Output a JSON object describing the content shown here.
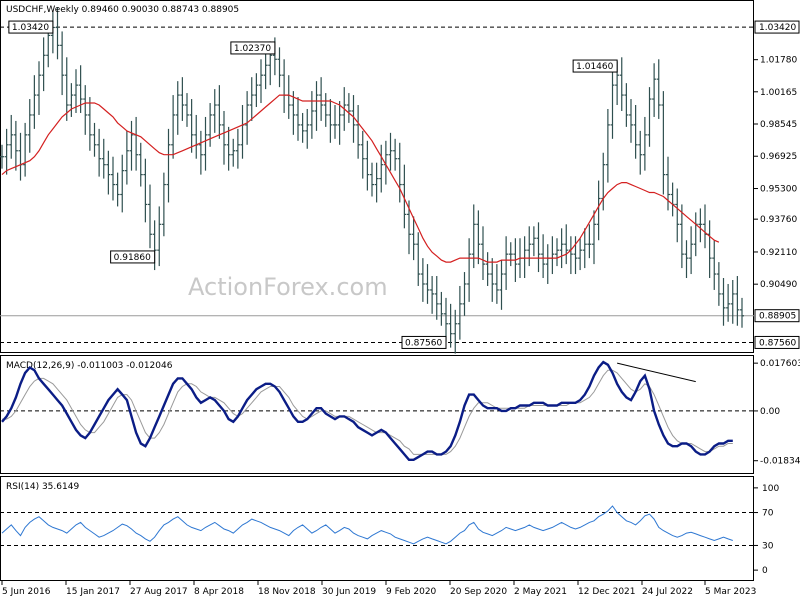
{
  "chart_data": {
    "type": "ohlc",
    "header": "USDCHF,Weekly  0.89460 0.90030 0.88743 0.88905",
    "watermark": "ActionForex.com",
    "price_axis": {
      "min": 0.8718,
      "max": 1.0458,
      "ticks": [
        "1.01780",
        "1.00165",
        "0.98545",
        "0.96925",
        "0.95300",
        "0.93760",
        "0.92110",
        "0.90490"
      ],
      "current_price": "0.88905",
      "highlight_levels": [
        "1.03420",
        "0.87560"
      ],
      "highlight_values": [
        1.0342,
        0.8756
      ]
    },
    "annotations": [
      {
        "label": "1.03420",
        "value": 1.0342,
        "date_index": 11
      },
      {
        "label": "1.02370",
        "value": 1.0237,
        "date_index": 59
      },
      {
        "label": "0.91860",
        "value": 0.9186,
        "date_index": 33
      },
      {
        "label": "1.01460",
        "value": 1.0146,
        "date_index": 133
      },
      {
        "label": "0.87560",
        "value": 0.8756,
        "date_index": 96
      }
    ],
    "x_tick_labels": [
      "5 Jun 2016",
      "15 Jan 2017",
      "27 Aug 2017",
      "8 Apr 2018",
      "18 Nov 2018",
      "30 Jun 2019",
      "9 Feb 2020",
      "20 Sep 2020",
      "2 May 2021",
      "12 Dec 2021",
      "24 Jul 2022",
      "5 Mar 2023"
    ],
    "series": [
      {
        "name": "USDCHF",
        "close": [
          0.969,
          0.975,
          0.98,
          0.972,
          0.965,
          0.98,
          0.99,
          1.0,
          1.01,
          1.02,
          1.03,
          1.034,
          1.025,
          1.01,
          0.995,
          1.0,
          1.005,
          0.998,
          0.99,
          0.98,
          0.975,
          0.968,
          0.965,
          0.96,
          0.955,
          0.95,
          0.962,
          0.972,
          0.98,
          0.97,
          0.96,
          0.945,
          0.93,
          0.922,
          0.935,
          0.955,
          0.975,
          0.99,
          1.0,
          0.995,
          0.99,
          0.98,
          0.975,
          0.97,
          0.98,
          0.99,
          0.995,
          0.985,
          0.975,
          0.97,
          0.972,
          0.975,
          0.985,
          0.995,
          1.0,
          1.005,
          1.01,
          1.015,
          1.02,
          1.018,
          1.01,
          1.0,
          0.995,
          0.99,
          0.985,
          0.982,
          0.985,
          0.992,
          1.0,
          0.995,
          0.99,
          0.985,
          0.985,
          0.99,
          0.995,
          0.992,
          0.985,
          0.975,
          0.968,
          0.96,
          0.955,
          0.958,
          0.965,
          0.97,
          0.972,
          0.968,
          0.955,
          0.94,
          0.93,
          0.925,
          0.91,
          0.905,
          0.902,
          0.9,
          0.895,
          0.89,
          0.885,
          0.88,
          0.885,
          0.895,
          0.905,
          0.92,
          0.935,
          0.925,
          0.915,
          0.91,
          0.905,
          0.902,
          0.91,
          0.92,
          0.92,
          0.915,
          0.918,
          0.922,
          0.925,
          0.928,
          0.92,
          0.915,
          0.918,
          0.92,
          0.922,
          0.925,
          0.922,
          0.92,
          0.918,
          0.922,
          0.925,
          0.925,
          0.935,
          0.948,
          0.965,
          0.985,
          1.005,
          1.01,
          1.0,
          0.99,
          0.985,
          0.975,
          0.97,
          0.98,
          0.998,
          1.008,
          0.995,
          0.96,
          0.95,
          0.945,
          0.935,
          0.92,
          0.918,
          0.925,
          0.935,
          0.935,
          0.93,
          0.918,
          0.91,
          0.9,
          0.893,
          0.895,
          0.9,
          0.892,
          0.889
        ]
      },
      {
        "name": "SMA",
        "values": [
          0.96,
          0.962,
          0.963,
          0.964,
          0.965,
          0.966,
          0.967,
          0.969,
          0.972,
          0.976,
          0.98,
          0.983,
          0.986,
          0.989,
          0.991,
          0.993,
          0.994,
          0.995,
          0.996,
          0.996,
          0.996,
          0.995,
          0.993,
          0.991,
          0.989,
          0.986,
          0.984,
          0.982,
          0.981,
          0.98,
          0.979,
          0.977,
          0.975,
          0.973,
          0.971,
          0.97,
          0.97,
          0.97,
          0.971,
          0.972,
          0.973,
          0.974,
          0.975,
          0.976,
          0.977,
          0.978,
          0.979,
          0.98,
          0.981,
          0.982,
          0.983,
          0.984,
          0.985,
          0.986,
          0.988,
          0.99,
          0.992,
          0.994,
          0.996,
          0.998,
          1.0,
          1.0,
          1.0,
          0.999,
          0.998,
          0.997,
          0.997,
          0.997,
          0.997,
          0.997,
          0.997,
          0.997,
          0.996,
          0.995,
          0.993,
          0.991,
          0.989,
          0.986,
          0.983,
          0.98,
          0.977,
          0.973,
          0.969,
          0.965,
          0.961,
          0.957,
          0.953,
          0.948,
          0.943,
          0.938,
          0.933,
          0.928,
          0.924,
          0.921,
          0.919,
          0.917,
          0.916,
          0.916,
          0.917,
          0.918,
          0.918,
          0.918,
          0.918,
          0.918,
          0.917,
          0.916,
          0.916,
          0.916,
          0.917,
          0.917,
          0.917,
          0.917,
          0.918,
          0.918,
          0.918,
          0.918,
          0.918,
          0.918,
          0.918,
          0.918,
          0.918,
          0.919,
          0.92,
          0.922,
          0.925,
          0.928,
          0.932,
          0.936,
          0.94,
          0.944,
          0.948,
          0.951,
          0.953,
          0.955,
          0.956,
          0.956,
          0.955,
          0.954,
          0.953,
          0.952,
          0.951,
          0.951,
          0.95,
          0.949,
          0.947,
          0.945,
          0.943,
          0.941,
          0.939,
          0.937,
          0.935,
          0.933,
          0.931,
          0.929,
          0.927,
          0.926
        ]
      }
    ],
    "panels": [
      {
        "title": "MACD(12,26,9) -0.011003 -0.012046",
        "ticks": [
          "0.017603",
          "0.00",
          "-0.01834"
        ],
        "tick_values": [
          0.017603,
          0.0,
          -0.01834
        ],
        "range": [
          -0.0225,
          0.0195
        ],
        "series": [
          {
            "name": "MACD",
            "values": [
              -0.004,
              -0.002,
              0.001,
              0.005,
              0.01,
              0.014,
              0.016,
              0.015,
              0.012,
              0.01,
              0.008,
              0.006,
              0.004,
              0.002,
              -0.001,
              -0.004,
              -0.007,
              -0.009,
              -0.01,
              -0.008,
              -0.005,
              -0.002,
              0.001,
              0.004,
              0.006,
              0.008,
              0.006,
              0.004,
              -0.002,
              -0.008,
              -0.012,
              -0.013,
              -0.01,
              -0.006,
              -0.002,
              0.002,
              0.006,
              0.01,
              0.012,
              0.012,
              0.01,
              0.008,
              0.005,
              0.003,
              0.004,
              0.005,
              0.004,
              0.002,
              0.0,
              -0.003,
              -0.004,
              -0.002,
              0.001,
              0.004,
              0.006,
              0.008,
              0.009,
              0.01,
              0.01,
              0.009,
              0.007,
              0.004,
              0.001,
              -0.002,
              -0.004,
              -0.004,
              -0.003,
              -0.001,
              0.001,
              0.001,
              -0.001,
              -0.002,
              -0.003,
              -0.002,
              -0.002,
              -0.003,
              -0.004,
              -0.006,
              -0.007,
              -0.008,
              -0.009,
              -0.008,
              -0.007,
              -0.008,
              -0.01,
              -0.012,
              -0.014,
              -0.016,
              -0.018,
              -0.018,
              -0.017,
              -0.016,
              -0.015,
              -0.015,
              -0.016,
              -0.016,
              -0.015,
              -0.013,
              -0.009,
              -0.004,
              0.002,
              0.006,
              0.006,
              0.004,
              0.002,
              0.001,
              0.001,
              0.001,
              0.0,
              0.0,
              0.001,
              0.001,
              0.002,
              0.002,
              0.002,
              0.003,
              0.003,
              0.003,
              0.002,
              0.002,
              0.002,
              0.003,
              0.003,
              0.003,
              0.003,
              0.004,
              0.006,
              0.009,
              0.013,
              0.016,
              0.018,
              0.017,
              0.014,
              0.01,
              0.007,
              0.005,
              0.004,
              0.007,
              0.011,
              0.013,
              0.008,
              0.0,
              -0.005,
              -0.009,
              -0.012,
              -0.013,
              -0.013,
              -0.012,
              -0.012,
              -0.013,
              -0.015,
              -0.016,
              -0.016,
              -0.015,
              -0.013,
              -0.012,
              -0.012,
              -0.011,
              -0.011
            ]
          },
          {
            "name": "Signal",
            "values": [
              -0.003,
              -0.003,
              -0.002,
              0.0,
              0.003,
              0.006,
              0.009,
              0.011,
              0.012,
              0.012,
              0.011,
              0.01,
              0.008,
              0.006,
              0.004,
              0.001,
              -0.002,
              -0.005,
              -0.007,
              -0.008,
              -0.008,
              -0.006,
              -0.004,
              -0.001,
              0.002,
              0.005,
              0.006,
              0.006,
              0.004,
              0.0,
              -0.004,
              -0.008,
              -0.01,
              -0.01,
              -0.008,
              -0.005,
              -0.001,
              0.003,
              0.007,
              0.009,
              0.01,
              0.01,
              0.009,
              0.007,
              0.006,
              0.005,
              0.005,
              0.004,
              0.003,
              0.001,
              -0.001,
              -0.002,
              -0.001,
              0.001,
              0.003,
              0.005,
              0.007,
              0.008,
              0.009,
              0.009,
              0.009,
              0.007,
              0.005,
              0.002,
              0.0,
              -0.002,
              -0.003,
              -0.002,
              -0.001,
              0.0,
              0.0,
              -0.001,
              -0.002,
              -0.002,
              -0.002,
              -0.002,
              -0.003,
              -0.004,
              -0.005,
              -0.006,
              -0.007,
              -0.008,
              -0.008,
              -0.008,
              -0.009,
              -0.01,
              -0.011,
              -0.013,
              -0.014,
              -0.016,
              -0.016,
              -0.016,
              -0.016,
              -0.016,
              -0.016,
              -0.016,
              -0.016,
              -0.015,
              -0.013,
              -0.01,
              -0.006,
              -0.002,
              0.001,
              0.003,
              0.003,
              0.003,
              0.002,
              0.001,
              0.001,
              0.001,
              0.001,
              0.001,
              0.001,
              0.001,
              0.002,
              0.002,
              0.002,
              0.002,
              0.002,
              0.002,
              0.002,
              0.002,
              0.002,
              0.003,
              0.003,
              0.003,
              0.004,
              0.005,
              0.007,
              0.01,
              0.013,
              0.015,
              0.015,
              0.014,
              0.012,
              0.01,
              0.008,
              0.007,
              0.008,
              0.01,
              0.009,
              0.006,
              0.002,
              -0.002,
              -0.006,
              -0.009,
              -0.011,
              -0.012,
              -0.012,
              -0.012,
              -0.013,
              -0.014,
              -0.015,
              -0.015,
              -0.014,
              -0.013,
              -0.013,
              -0.012,
              -0.012
            ]
          }
        ],
        "trendline": {
          "start_index": 133,
          "end_index": 150,
          "start_value": 0.0176,
          "end_value": 0.0108
        }
      },
      {
        "title": "RSI(14) 35.6149",
        "ticks": [
          "100",
          "70",
          "30",
          "0"
        ],
        "tick_values": [
          100,
          70,
          30,
          0
        ],
        "range": [
          -12,
          112
        ],
        "series": [
          {
            "name": "RSI",
            "values": [
              45,
              50,
              55,
              48,
              42,
              52,
              58,
              62,
              65,
              60,
              55,
              52,
              50,
              48,
              45,
              50,
              55,
              58,
              52,
              48,
              44,
              40,
              42,
              45,
              48,
              52,
              56,
              54,
              50,
              45,
              42,
              38,
              35,
              40,
              48,
              55,
              58,
              62,
              65,
              60,
              55,
              52,
              50,
              48,
              52,
              55,
              58,
              54,
              50,
              48,
              45,
              50,
              55,
              58,
              62,
              60,
              58,
              55,
              52,
              50,
              48,
              45,
              42,
              48,
              52,
              55,
              50,
              45,
              48,
              52,
              55,
              50,
              45,
              48,
              52,
              50,
              45,
              42,
              40,
              38,
              42,
              45,
              48,
              46,
              44,
              40,
              38,
              36,
              34,
              32,
              35,
              38,
              40,
              38,
              36,
              34,
              32,
              35,
              40,
              45,
              48,
              55,
              58,
              50,
              46,
              44,
              42,
              45,
              48,
              52,
              50,
              48,
              50,
              52,
              55,
              52,
              50,
              48,
              50,
              52,
              55,
              58,
              55,
              52,
              50,
              52,
              55,
              58,
              60,
              65,
              68,
              72,
              78,
              70,
              65,
              60,
              58,
              55,
              60,
              66,
              68,
              62,
              52,
              48,
              45,
              42,
              40,
              42,
              45,
              46,
              44,
              42,
              40,
              38,
              36,
              38,
              40,
              38,
              36
            ]
          }
        ]
      }
    ]
  }
}
